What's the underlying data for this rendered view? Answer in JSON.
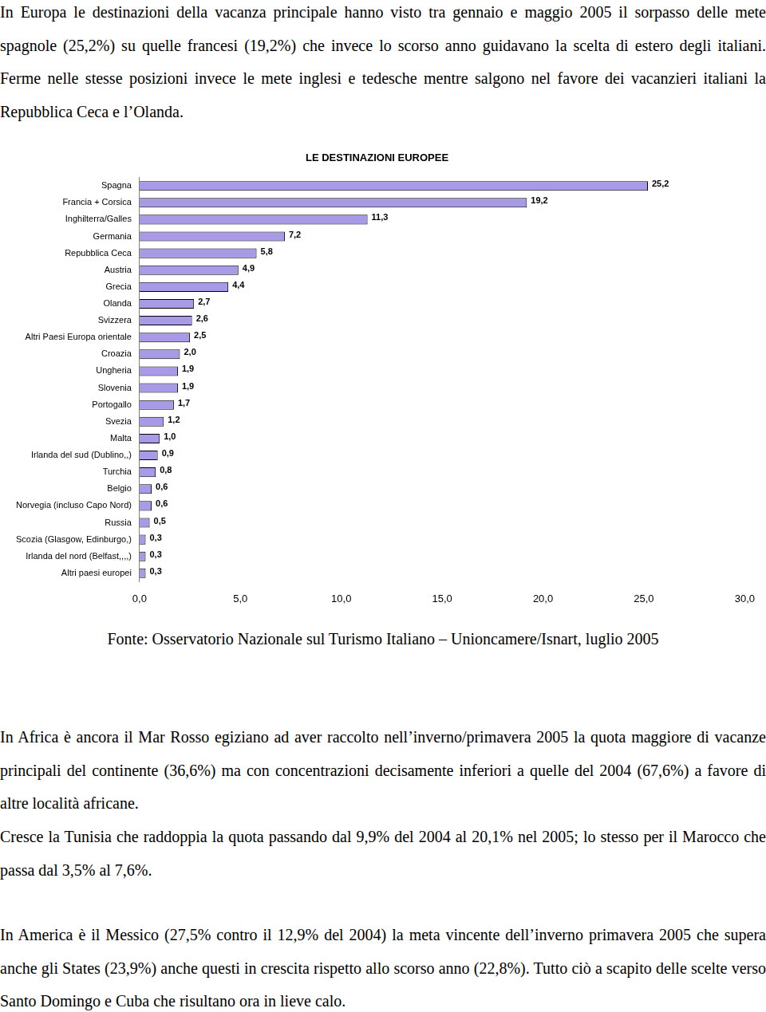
{
  "intro": "In Europa le destinazioni della vacanza principale hanno visto tra gennaio e maggio 2005 il sorpasso delle mete spagnole (25,2%) su quelle francesi (19,2%) che invece lo scorso anno guidavano la scelta di estero degli italiani. Ferme nelle stesse posizioni invece le mete inglesi e tedesche mentre salgono nel favore dei vacanzieri italiani la Repubblica Ceca e l’Olanda.",
  "chart_data": {
    "type": "bar",
    "orientation": "horizontal",
    "title": "LE DESTINAZIONI EUROPEE",
    "categories": [
      "Spagna",
      "Francia + Corsica",
      "Inghilterra/Galles",
      "Germania",
      "Repubblica Ceca",
      "Austria",
      "Grecia",
      "Olanda",
      "Svizzera",
      "Altri Paesi Europa orientale",
      "Croazia",
      "Ungheria",
      "Slovenia",
      "Portogallo",
      "Svezia",
      "Malta",
      "Irlanda del sud (Dublino,,)",
      "Turchia",
      "Belgio",
      "Norvegia (incluso Capo Nord)",
      "Russia",
      "Scozia (Glasgow, Edinburgo,)",
      "Irlanda del nord (Belfast,,,,)",
      "Altri paesi europei"
    ],
    "values": [
      25.2,
      19.2,
      11.3,
      7.2,
      5.8,
      4.9,
      4.4,
      2.7,
      2.6,
      2.5,
      2.0,
      1.9,
      1.9,
      1.7,
      1.2,
      1.0,
      0.9,
      0.8,
      0.6,
      0.6,
      0.5,
      0.3,
      0.3,
      0.3
    ],
    "value_labels": [
      "25,2",
      "19,2",
      "11,3",
      "7,2",
      "5,8",
      "4,9",
      "4,4",
      "2,7",
      "2,6",
      "2,5",
      "2,0",
      "1,9",
      "1,9",
      "1,7",
      "1,2",
      "1,0",
      "0,9",
      "0,8",
      "0,6",
      "0,6",
      "0,5",
      "0,3",
      "0,3",
      "0,3"
    ],
    "data_labels": true,
    "color": "#a89ae6",
    "xlim": [
      0,
      30
    ],
    "xticks": [
      {
        "value": 0,
        "label": "0,0"
      },
      {
        "value": 5,
        "label": "5,0"
      },
      {
        "value": 10,
        "label": "10,0"
      },
      {
        "value": 15,
        "label": "15,0"
      },
      {
        "value": 20,
        "label": "20,0"
      },
      {
        "value": 25,
        "label": "25,0"
      },
      {
        "value": 30,
        "label": "30,0"
      }
    ],
    "grid": false
  },
  "source": "Fonte: Osservatorio Nazionale sul Turismo Italiano – Unioncamere/Isnart, luglio 2005",
  "paragraphs": [
    "In Africa è ancora il Mar Rosso egiziano ad aver raccolto nell’inverno/primavera 2005 la quota maggiore di vacanze principali del continente (36,6%) ma con concentrazioni decisamente inferiori a quelle del 2004 (67,6%) a favore di altre località africane.",
    "Cresce la Tunisia che raddoppia la quota passando dal 9,9% del 2004 al 20,1% nel 2005; lo stesso per il Marocco che passa dal 3,5% al 7,6%.",
    "In America è il Messico (27,5% contro il 12,9% del 2004) la meta vincente dell’inverno primavera 2005 che supera anche gli States (23,9%) anche questi in crescita rispetto allo scorso anno (22,8%). Tutto ciò a scapito delle scelte verso Santo Domingo e Cuba che risultano ora in lieve calo."
  ]
}
